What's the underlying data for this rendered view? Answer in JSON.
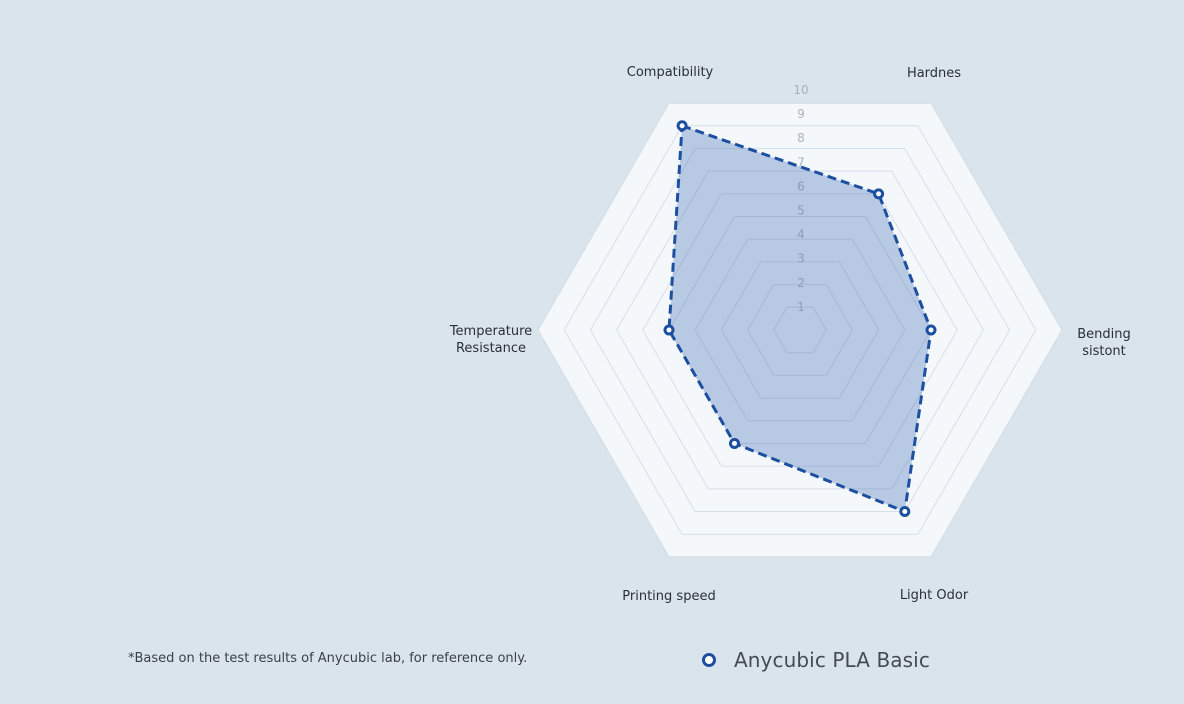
{
  "chart_data": {
    "type": "radar",
    "axes": [
      "Compatibility",
      "Hardnes",
      "Bending sistont",
      "Light Odor",
      "Printing speed",
      "Temperature Resistance"
    ],
    "axis_label_lines": [
      [
        "Compatibility"
      ],
      [
        "Hardnes"
      ],
      [
        "Bending",
        "sistont"
      ],
      [
        "Light Odor"
      ],
      [
        "Printing speed"
      ],
      [
        "Temperature",
        "Resistance"
      ]
    ],
    "rlim": [
      0,
      10
    ],
    "ticks": [
      "1",
      "2",
      "3",
      "4",
      "5",
      "6",
      "7",
      "8",
      "9",
      "10"
    ],
    "series": [
      {
        "name": "Anycubic PLA Basic",
        "values": [
          9,
          6,
          5,
          8,
          5,
          5
        ],
        "color": "#1c4fa0"
      }
    ],
    "grid": true,
    "legend": "bottom-center"
  },
  "colors": {
    "background": "#dae4ed",
    "grid_fill": "#f5f8fb",
    "grid_line": "#d6dee7",
    "area_fill": "rgba(84,124,191,0.38)",
    "line": "#1c4fa0",
    "marker_fill": "#ffffff"
  },
  "footnote": "*Based on the test results of Anycubic lab, for reference only.",
  "legend": {
    "label": "Anycubic PLA Basic",
    "marker_icon": "circle-marker-icon"
  }
}
